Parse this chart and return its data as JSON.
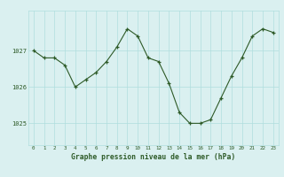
{
  "hours": [
    0,
    1,
    2,
    3,
    4,
    5,
    6,
    7,
    8,
    9,
    10,
    11,
    12,
    13,
    14,
    15,
    16,
    17,
    18,
    19,
    20,
    21,
    22,
    23
  ],
  "pressure": [
    1027.0,
    1026.8,
    1026.8,
    1026.6,
    1026.0,
    1026.2,
    1026.4,
    1026.7,
    1027.1,
    1027.6,
    1027.4,
    1026.8,
    1026.7,
    1026.1,
    1025.3,
    1025.0,
    1025.0,
    1025.1,
    1025.7,
    1026.3,
    1026.8,
    1027.4,
    1027.6,
    1027.5
  ],
  "line_color": "#2d5a27",
  "marker_color": "#2d5a27",
  "bg_color": "#daf0f0",
  "grid_color": "#b0dede",
  "axis_label_color": "#2d5a27",
  "ylabel_ticks": [
    1025,
    1026,
    1027
  ],
  "xlabel_label": "Graphe pression niveau de la mer (hPa)",
  "ylim_min": 1024.4,
  "ylim_max": 1028.1,
  "xlim_min": -0.5,
  "xlim_max": 23.5
}
